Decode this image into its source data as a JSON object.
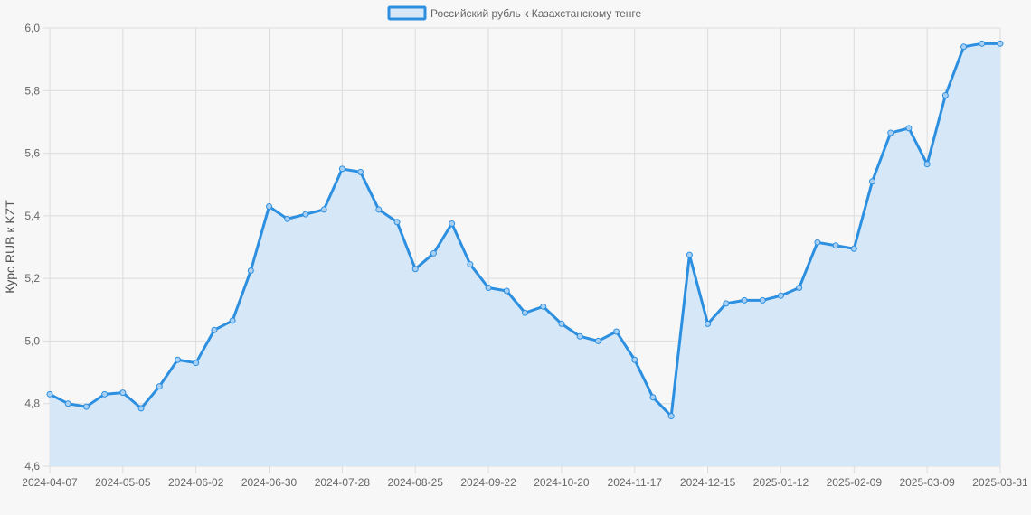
{
  "chart_data": {
    "type": "area",
    "ylabel": "Курс RUB к KZT",
    "xlabel": "",
    "ylim": [
      4.6,
      6.0
    ],
    "y_ticks": [
      4.6,
      4.8,
      5.0,
      5.2,
      5.4,
      5.6,
      5.8,
      6.0
    ],
    "y_tick_labels": [
      "4,6",
      "4,8",
      "5,0",
      "5,2",
      "5,4",
      "5,6",
      "5,8",
      "6,0"
    ],
    "x_tick_labels": [
      "2024-04-07",
      "2024-05-05",
      "2024-06-02",
      "2024-06-30",
      "2024-07-28",
      "2024-08-25",
      "2024-09-22",
      "2024-10-20",
      "2024-11-17",
      "2024-12-15",
      "2025-01-12",
      "2025-02-09",
      "2025-03-09",
      "2025-03-31"
    ],
    "x_tick_index": [
      0,
      4,
      8,
      12,
      16,
      20,
      24,
      28,
      32,
      36,
      40,
      44,
      48,
      52
    ],
    "grid": true,
    "legend_position": "top-center",
    "colors": {
      "line": "#2c8fe0",
      "fill": "#d6e8f8",
      "point_fill": "#a9d0f2"
    },
    "series": [
      {
        "name": "Российский рубль к Казахстанскому тенге",
        "values": [
          4.83,
          4.8,
          4.79,
          4.83,
          4.835,
          4.785,
          4.855,
          4.94,
          4.93,
          5.035,
          5.065,
          5.225,
          5.43,
          5.39,
          5.405,
          5.42,
          5.55,
          5.54,
          5.42,
          5.38,
          5.23,
          5.28,
          5.375,
          5.245,
          5.17,
          5.16,
          5.09,
          5.11,
          5.055,
          5.015,
          5.0,
          5.03,
          4.94,
          4.82,
          4.76,
          5.275,
          5.055,
          5.12,
          5.13,
          5.13,
          5.145,
          5.17,
          5.315,
          5.305,
          5.295,
          5.51,
          5.665,
          5.68,
          5.565,
          5.785,
          5.94,
          5.95,
          5.95
        ]
      }
    ]
  }
}
